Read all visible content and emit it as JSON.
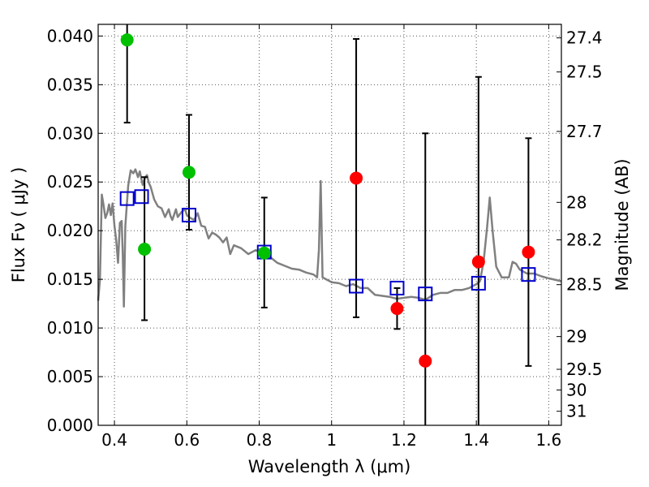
{
  "chart_data": {
    "type": "scatter",
    "xlabel": "Wavelength  λ (μm)",
    "ylabel": "Flux  Fν  ( μJy )",
    "ylabel_right": "Magnitude (AB)",
    "xlim": [
      0.355,
      1.635
    ],
    "ylim": [
      0.0,
      0.0412
    ],
    "x_ticks": [
      0.4,
      0.6,
      0.8,
      1.0,
      1.2,
      1.4,
      1.6
    ],
    "x_tick_labels": [
      "0.4",
      "0.6",
      "0.8",
      "1",
      "1.2",
      "1.4",
      "1.6"
    ],
    "y_ticks": [
      0.0,
      0.005,
      0.01,
      0.015,
      0.02,
      0.025,
      0.03,
      0.035,
      0.04
    ],
    "y_tick_labels": [
      "0.000",
      "0.005",
      "0.010",
      "0.015",
      "0.020",
      "0.025",
      "0.030",
      "0.035",
      "0.040"
    ],
    "right_ticks": [
      {
        "mag": 27.4,
        "label": "27.4"
      },
      {
        "mag": 27.5,
        "label": "27.5"
      },
      {
        "mag": 27.7,
        "label": "27.7"
      },
      {
        "mag": 28.0,
        "label": "28"
      },
      {
        "mag": 28.2,
        "label": "28.2"
      },
      {
        "mag": 28.5,
        "label": "28.5"
      },
      {
        "mag": 29.0,
        "label": "29"
      },
      {
        "mag": 29.5,
        "label": "29.5"
      },
      {
        "mag": 30.0,
        "label": "30"
      },
      {
        "mag": 31.0,
        "label": "31"
      }
    ],
    "grid": true,
    "colors": {
      "optical_points": "#00c000",
      "nir_points": "#ff0000",
      "model_boxes": "#0000cc",
      "sed_line": "#808080",
      "error_bars": "#000000"
    },
    "series": [
      {
        "name": "optical_flux",
        "color": "#00c000",
        "points": [
          {
            "x": 0.435,
            "y": 0.0396,
            "lo": 0.0311,
            "hi": 0.0412
          },
          {
            "x": 0.483,
            "y": 0.0181,
            "lo": 0.0108,
            "hi": 0.0255
          },
          {
            "x": 0.606,
            "y": 0.026,
            "lo": 0.0201,
            "hi": 0.0319
          },
          {
            "x": 0.814,
            "y": 0.0177,
            "lo": 0.0121,
            "hi": 0.0234
          }
        ]
      },
      {
        "name": "nir_flux",
        "color": "#ff0000",
        "points": [
          {
            "x": 1.068,
            "y": 0.0254,
            "lo": 0.0111,
            "hi": 0.0397
          },
          {
            "x": 1.181,
            "y": 0.012,
            "lo": 0.0099,
            "hi": 0.0141
          },
          {
            "x": 1.259,
            "y": 0.0066,
            "lo": 0.0,
            "hi": 0.03
          },
          {
            "x": 1.406,
            "y": 0.0168,
            "lo": 0.0,
            "hi": 0.0358
          },
          {
            "x": 1.544,
            "y": 0.0178,
            "lo": 0.0061,
            "hi": 0.0295
          }
        ]
      },
      {
        "name": "model_fluxes",
        "color": "#0000cc",
        "points": [
          {
            "x": 0.435,
            "y": 0.0233
          },
          {
            "x": 0.475,
            "y": 0.0235
          },
          {
            "x": 0.606,
            "y": 0.0216
          },
          {
            "x": 0.814,
            "y": 0.0178
          },
          {
            "x": 1.068,
            "y": 0.0143
          },
          {
            "x": 1.181,
            "y": 0.0141
          },
          {
            "x": 1.259,
            "y": 0.0135
          },
          {
            "x": 1.406,
            "y": 0.0146
          },
          {
            "x": 1.544,
            "y": 0.0155
          }
        ]
      },
      {
        "name": "sed_template",
        "color": "#808080",
        "points": [
          {
            "x": 0.355,
            "y": 0.0128
          },
          {
            "x": 0.36,
            "y": 0.015
          },
          {
            "x": 0.365,
            "y": 0.0237
          },
          {
            "x": 0.37,
            "y": 0.0226
          },
          {
            "x": 0.375,
            "y": 0.0213
          },
          {
            "x": 0.38,
            "y": 0.0218
          },
          {
            "x": 0.385,
            "y": 0.0227
          },
          {
            "x": 0.39,
            "y": 0.0216
          },
          {
            "x": 0.395,
            "y": 0.0228
          },
          {
            "x": 0.4,
            "y": 0.0205
          },
          {
            "x": 0.405,
            "y": 0.019
          },
          {
            "x": 0.41,
            "y": 0.0167
          },
          {
            "x": 0.415,
            "y": 0.0208
          },
          {
            "x": 0.42,
            "y": 0.021
          },
          {
            "x": 0.423,
            "y": 0.0176
          },
          {
            "x": 0.426,
            "y": 0.0122
          },
          {
            "x": 0.43,
            "y": 0.0205
          },
          {
            "x": 0.438,
            "y": 0.0246
          },
          {
            "x": 0.445,
            "y": 0.0262
          },
          {
            "x": 0.452,
            "y": 0.0259
          },
          {
            "x": 0.458,
            "y": 0.0263
          },
          {
            "x": 0.465,
            "y": 0.0255
          },
          {
            "x": 0.47,
            "y": 0.0261
          },
          {
            "x": 0.478,
            "y": 0.0247
          },
          {
            "x": 0.485,
            "y": 0.0255
          },
          {
            "x": 0.49,
            "y": 0.0257
          },
          {
            "x": 0.495,
            "y": 0.0249
          },
          {
            "x": 0.5,
            "y": 0.0245
          },
          {
            "x": 0.51,
            "y": 0.0232
          },
          {
            "x": 0.52,
            "y": 0.0225
          },
          {
            "x": 0.53,
            "y": 0.0223
          },
          {
            "x": 0.54,
            "y": 0.0214
          },
          {
            "x": 0.55,
            "y": 0.0222
          },
          {
            "x": 0.555,
            "y": 0.0215
          },
          {
            "x": 0.56,
            "y": 0.0211
          },
          {
            "x": 0.57,
            "y": 0.0222
          },
          {
            "x": 0.575,
            "y": 0.0214
          },
          {
            "x": 0.585,
            "y": 0.0219
          },
          {
            "x": 0.595,
            "y": 0.0222
          },
          {
            "x": 0.6,
            "y": 0.0216
          },
          {
            "x": 0.61,
            "y": 0.0213
          },
          {
            "x": 0.62,
            "y": 0.0211
          },
          {
            "x": 0.63,
            "y": 0.0218
          },
          {
            "x": 0.64,
            "y": 0.0205
          },
          {
            "x": 0.65,
            "y": 0.0204
          },
          {
            "x": 0.66,
            "y": 0.0192
          },
          {
            "x": 0.67,
            "y": 0.0198
          },
          {
            "x": 0.68,
            "y": 0.0196
          },
          {
            "x": 0.69,
            "y": 0.0193
          },
          {
            "x": 0.7,
            "y": 0.0188
          },
          {
            "x": 0.71,
            "y": 0.0193
          },
          {
            "x": 0.72,
            "y": 0.0176
          },
          {
            "x": 0.73,
            "y": 0.0185
          },
          {
            "x": 0.75,
            "y": 0.0182
          },
          {
            "x": 0.77,
            "y": 0.0176
          },
          {
            "x": 0.79,
            "y": 0.018
          },
          {
            "x": 0.81,
            "y": 0.0177
          },
          {
            "x": 0.83,
            "y": 0.0173
          },
          {
            "x": 0.85,
            "y": 0.0167
          },
          {
            "x": 0.87,
            "y": 0.0164
          },
          {
            "x": 0.89,
            "y": 0.0161
          },
          {
            "x": 0.91,
            "y": 0.016
          },
          {
            "x": 0.93,
            "y": 0.0157
          },
          {
            "x": 0.95,
            "y": 0.0155
          },
          {
            "x": 0.96,
            "y": 0.0152
          },
          {
            "x": 0.965,
            "y": 0.018
          },
          {
            "x": 0.97,
            "y": 0.0251
          },
          {
            "x": 0.975,
            "y": 0.0152
          },
          {
            "x": 0.985,
            "y": 0.015
          },
          {
            "x": 1.0,
            "y": 0.0147
          },
          {
            "x": 1.02,
            "y": 0.0146
          },
          {
            "x": 1.04,
            "y": 0.0143
          },
          {
            "x": 1.06,
            "y": 0.0145
          },
          {
            "x": 1.08,
            "y": 0.0141
          },
          {
            "x": 1.1,
            "y": 0.0141
          },
          {
            "x": 1.12,
            "y": 0.0134
          },
          {
            "x": 1.14,
            "y": 0.0133
          },
          {
            "x": 1.16,
            "y": 0.0132
          },
          {
            "x": 1.18,
            "y": 0.013
          },
          {
            "x": 1.2,
            "y": 0.0131
          },
          {
            "x": 1.22,
            "y": 0.0132
          },
          {
            "x": 1.24,
            "y": 0.0131
          },
          {
            "x": 1.26,
            "y": 0.0129
          },
          {
            "x": 1.28,
            "y": 0.0134
          },
          {
            "x": 1.3,
            "y": 0.0136
          },
          {
            "x": 1.32,
            "y": 0.0136
          },
          {
            "x": 1.34,
            "y": 0.0139
          },
          {
            "x": 1.36,
            "y": 0.0139
          },
          {
            "x": 1.38,
            "y": 0.0141
          },
          {
            "x": 1.4,
            "y": 0.0145
          },
          {
            "x": 1.41,
            "y": 0.0148
          },
          {
            "x": 1.42,
            "y": 0.0168
          },
          {
            "x": 1.43,
            "y": 0.0205
          },
          {
            "x": 1.437,
            "y": 0.0234
          },
          {
            "x": 1.445,
            "y": 0.02
          },
          {
            "x": 1.455,
            "y": 0.0163
          },
          {
            "x": 1.47,
            "y": 0.0152
          },
          {
            "x": 1.49,
            "y": 0.0152
          },
          {
            "x": 1.5,
            "y": 0.0168
          },
          {
            "x": 1.51,
            "y": 0.0166
          },
          {
            "x": 1.52,
            "y": 0.016
          },
          {
            "x": 1.54,
            "y": 0.0156
          },
          {
            "x": 1.56,
            "y": 0.0156
          },
          {
            "x": 1.58,
            "y": 0.0153
          },
          {
            "x": 1.6,
            "y": 0.0151
          },
          {
            "x": 1.635,
            "y": 0.0148
          }
        ]
      }
    ]
  }
}
